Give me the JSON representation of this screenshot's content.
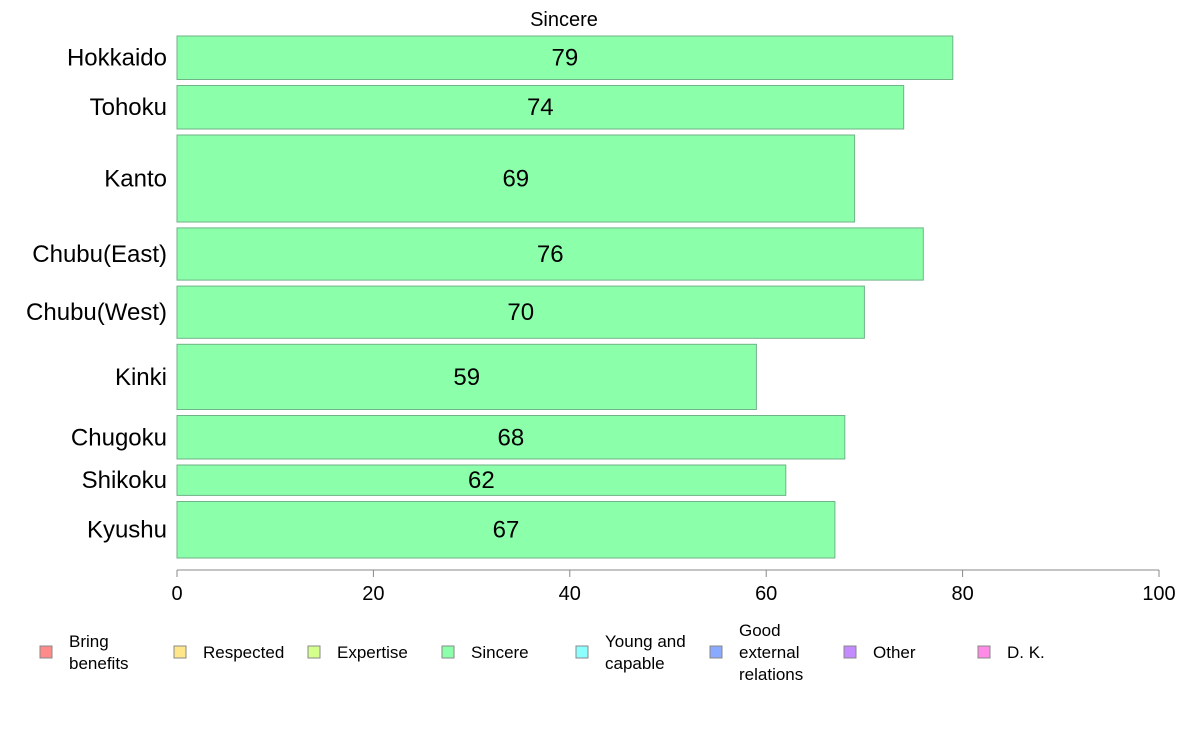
{
  "chart_data": {
    "type": "bar",
    "orientation": "horizontal",
    "title": "Sincere",
    "categories": [
      "Hokkaido",
      "Tohoku",
      "Kanto",
      "Chubu(East)",
      "Chubu(West)",
      "Kinki",
      "Chugoku",
      "Shikoku",
      "Kyushu"
    ],
    "values": [
      79,
      74,
      69,
      76,
      70,
      59,
      68,
      62,
      67
    ],
    "bar_weights": [
      1,
      1,
      2,
      1.2,
      1.2,
      1.5,
      1,
      0.7,
      1.3
    ],
    "xlim": [
      0,
      100
    ],
    "xticks": [
      0,
      20,
      40,
      60,
      80,
      100
    ],
    "xlabel": "",
    "ylabel": "",
    "bar_color": "#8cffaa",
    "bar_stroke": "#6fb387",
    "axis_color": "#888888",
    "grid": false,
    "legend": {
      "placement": "bottom",
      "entries": [
        {
          "label": "Bring benefits",
          "color": "#ff8a8a"
        },
        {
          "label": "Respected",
          "color": "#ffe68a"
        },
        {
          "label": "Expertise",
          "color": "#d4ff8a"
        },
        {
          "label": "Sincere",
          "color": "#8cffaa"
        },
        {
          "label": "Young and capable",
          "color": "#8cffff"
        },
        {
          "label": "Good external relations",
          "color": "#8aaaff"
        },
        {
          "label": "Other",
          "color": "#c48aff"
        },
        {
          "label": "D. K.",
          "color": "#ff8ae6"
        }
      ]
    }
  }
}
